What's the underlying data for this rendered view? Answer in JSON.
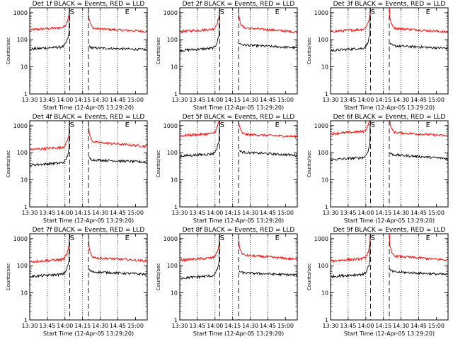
{
  "chart_data": [
    {
      "type": "line",
      "title": "Det 1f BLACK = Events, RED = LLD",
      "xlabel": "Start Time (12-Apr-05 13:29:20)",
      "ylabel": "Counts/sec",
      "x_ticks": [
        "13:30",
        "13:45",
        "14:00",
        "14:15",
        "14:30",
        "14:45",
        "15:00"
      ],
      "y_ticks": [
        "1",
        "10",
        "100",
        "1000"
      ],
      "ylim": [
        1,
        1000
      ],
      "yscale": "log",
      "markers": [
        {
          "label": "S",
          "x": "14:06"
        },
        {
          "label": "E",
          "x": "14:53"
        }
      ],
      "saa_gap": {
        "start": "14:04",
        "end": "14:20"
      },
      "series": [
        {
          "color": "#ff0000",
          "level_before": 230,
          "level_after": 260,
          "level_end": 200
        },
        {
          "color": "#000000",
          "level_before": 45,
          "level_after": 50,
          "level_end": 43
        }
      ]
    },
    {
      "type": "line",
      "title": "Det 2f BLACK = Events, RED = LLD",
      "xlabel": "Start Time (12-Apr-05 13:29:20)",
      "ylabel": "Counts/sec",
      "x_ticks": [
        "13:30",
        "13:45",
        "14:00",
        "14:15",
        "14:30",
        "14:45",
        "15:00"
      ],
      "y_ticks": [
        "1",
        "10",
        "100",
        "1000"
      ],
      "ylim": [
        1,
        1000
      ],
      "yscale": "log",
      "markers": [
        {
          "label": "S",
          "x": "14:06"
        },
        {
          "label": "E",
          "x": "14:53"
        }
      ],
      "saa_gap": {
        "start": "14:04",
        "end": "14:20"
      },
      "series": [
        {
          "color": "#ff0000",
          "level_before": 200,
          "level_after": 280,
          "level_end": 190
        },
        {
          "color": "#000000",
          "level_before": 40,
          "level_after": 65,
          "level_end": 50
        }
      ]
    },
    {
      "type": "line",
      "title": "Det 3f BLACK = Events, RED = LLD",
      "xlabel": "Start Time (12-Apr-05 13:29:20)",
      "ylabel": "Counts/sec",
      "x_ticks": [
        "13:30",
        "13:45",
        "14:00",
        "14:15",
        "14:30",
        "14:45",
        "15:00"
      ],
      "y_ticks": [
        "1",
        "10",
        "100",
        "1000"
      ],
      "ylim": [
        1,
        1000
      ],
      "yscale": "log",
      "markers": [
        {
          "label": "S",
          "x": "14:06"
        },
        {
          "label": "E",
          "x": "14:53"
        }
      ],
      "saa_gap": {
        "start": "14:04",
        "end": "14:20"
      },
      "series": [
        {
          "color": "#ff0000",
          "level_before": 200,
          "level_after": 270,
          "level_end": 190
        },
        {
          "color": "#000000",
          "level_before": 40,
          "level_after": 60,
          "level_end": 48
        }
      ]
    },
    {
      "type": "line",
      "title": "Det 4f BLACK = Events, RED = LLD",
      "xlabel": "Start Time (12-Apr-05 13:29:20)",
      "ylabel": "Counts/sec",
      "x_ticks": [
        "13:30",
        "13:45",
        "14:00",
        "14:15",
        "14:30",
        "14:45",
        "15:00"
      ],
      "y_ticks": [
        "1",
        "10",
        "100",
        "1000"
      ],
      "ylim": [
        1,
        1000
      ],
      "yscale": "log",
      "markers": [
        {
          "label": "S",
          "x": "14:06"
        },
        {
          "label": "E",
          "x": "14:53"
        }
      ],
      "saa_gap": {
        "start": "14:04",
        "end": "14:20"
      },
      "series": [
        {
          "color": "#ff0000",
          "level_before": 130,
          "level_after": 250,
          "level_end": 170
        },
        {
          "color": "#000000",
          "level_before": 35,
          "level_after": 55,
          "level_end": 45
        }
      ]
    },
    {
      "type": "line",
      "title": "Det 5f BLACK = Events, RED = LLD",
      "xlabel": "Start Time (12-Apr-05 13:29:20)",
      "ylabel": "Counts/sec",
      "x_ticks": [
        "13:30",
        "13:45",
        "14:00",
        "14:15",
        "14:30",
        "14:45",
        "15:00"
      ],
      "y_ticks": [
        "1",
        "10",
        "100",
        "1000"
      ],
      "ylim": [
        1,
        1000
      ],
      "yscale": "log",
      "markers": [
        {
          "label": "S",
          "x": "14:06"
        },
        {
          "label": "E",
          "x": "14:53"
        }
      ],
      "saa_gap": {
        "start": "14:04",
        "end": "14:20"
      },
      "series": [
        {
          "color": "#ff0000",
          "level_before": 420,
          "level_after": 480,
          "level_end": 390
        },
        {
          "color": "#000000",
          "level_before": 75,
          "level_after": 105,
          "level_end": 80
        }
      ]
    },
    {
      "type": "line",
      "title": "Det 6f BLACK = Events, RED = LLD",
      "xlabel": "Start Time (12-Apr-05 13:29:20)",
      "ylabel": "Counts/sec",
      "x_ticks": [
        "13:30",
        "13:45",
        "14:00",
        "14:15",
        "14:30",
        "14:45",
        "15:00"
      ],
      "y_ticks": [
        "1",
        "10",
        "100",
        "1000"
      ],
      "ylim": [
        1,
        1000
      ],
      "yscale": "log",
      "markers": [
        {
          "label": "S",
          "x": "14:06"
        },
        {
          "label": "E",
          "x": "14:53"
        }
      ],
      "saa_gap": {
        "start": "14:04",
        "end": "14:20"
      },
      "series": [
        {
          "color": "#ff0000",
          "level_before": 500,
          "level_after": 560,
          "level_end": 420
        },
        {
          "color": "#000000",
          "level_before": 55,
          "level_after": 85,
          "level_end": 60
        }
      ]
    },
    {
      "type": "line",
      "title": "Det 7f BLACK = Events, RED = LLD",
      "xlabel": "Start Time (12-Apr-05 13:29:20)",
      "ylabel": "Counts/sec",
      "x_ticks": [
        "13:30",
        "13:45",
        "14:00",
        "14:15",
        "14:30",
        "14:45",
        "15:00"
      ],
      "y_ticks": [
        "1",
        "10",
        "100",
        "1000"
      ],
      "ylim": [
        1,
        1000
      ],
      "yscale": "log",
      "markers": [
        {
          "label": "S",
          "x": "14:06"
        },
        {
          "label": "E",
          "x": "14:53"
        }
      ],
      "saa_gap": {
        "start": "14:04",
        "end": "14:20"
      },
      "series": [
        {
          "color": "#ff0000",
          "level_before": 140,
          "level_after": 200,
          "level_end": 150
        },
        {
          "color": "#000000",
          "level_before": 40,
          "level_after": 60,
          "level_end": 48
        }
      ]
    },
    {
      "type": "line",
      "title": "Det 8f BLACK = Events, RED = LLD",
      "xlabel": "Start Time (12-Apr-05 13:29:20)",
      "ylabel": "Counts/sec",
      "x_ticks": [
        "13:30",
        "13:45",
        "14:00",
        "14:15",
        "14:30",
        "14:45",
        "15:00"
      ],
      "y_ticks": [
        "1",
        "10",
        "100",
        "1000"
      ],
      "ylim": [
        1,
        1000
      ],
      "yscale": "log",
      "markers": [
        {
          "label": "S",
          "x": "14:06"
        },
        {
          "label": "E",
          "x": "14:53"
        }
      ],
      "saa_gap": {
        "start": "14:04",
        "end": "14:20"
      },
      "series": [
        {
          "color": "#ff0000",
          "level_before": 160,
          "level_after": 250,
          "level_end": 170
        },
        {
          "color": "#000000",
          "level_before": 35,
          "level_after": 55,
          "level_end": 45
        }
      ]
    },
    {
      "type": "line",
      "title": "Det 9f BLACK = Events, RED = LLD",
      "xlabel": "Start Time (12-Apr-05 13:29:20)",
      "ylabel": "Counts/sec",
      "x_ticks": [
        "13:30",
        "13:45",
        "14:00",
        "14:15",
        "14:30",
        "14:45",
        "15:00"
      ],
      "y_ticks": [
        "1",
        "10",
        "100",
        "1000"
      ],
      "ylim": [
        1,
        1000
      ],
      "yscale": "log",
      "markers": [
        {
          "label": "S",
          "x": "14:06"
        },
        {
          "label": "E",
          "x": "14:53"
        }
      ],
      "saa_gap": {
        "start": "14:04",
        "end": "14:20"
      },
      "series": [
        {
          "color": "#ff0000",
          "level_before": 150,
          "level_after": 230,
          "level_end": 160
        },
        {
          "color": "#000000",
          "level_before": 40,
          "level_after": 60,
          "level_end": 47
        }
      ]
    }
  ]
}
